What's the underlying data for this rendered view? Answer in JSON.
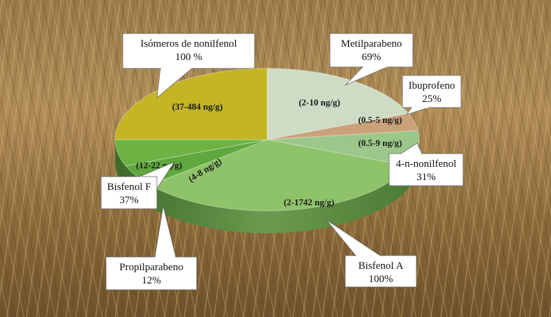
{
  "chart_data": {
    "type": "pie",
    "title": "",
    "slices": [
      {
        "name": "Metilparabeno",
        "percent": "69%",
        "range": "(2-10 ng/g)",
        "color": "#cfdcc5",
        "weight": 19
      },
      {
        "name": "Ibuprofeno",
        "percent": "25%",
        "range": "(0.5-5 ng/g)",
        "color": "#c9a27a",
        "weight": 4
      },
      {
        "name": "4-n-nonilfenol",
        "percent": "31%",
        "range": "(0.5-9 ng/g)",
        "color": "#9cc78a",
        "weight": 8
      },
      {
        "name": "Bisfenol A",
        "percent": "100%",
        "range": "(2-1742 ng/g)",
        "color": "#8fc36a",
        "weight": 33
      },
      {
        "name": "Propilparabeno",
        "percent": "12%",
        "range": "(4-8 ng/g)",
        "color": "#5fa83d",
        "weight": 5
      },
      {
        "name": "Bisfenol F",
        "percent": "37%",
        "range": "(12-22 ng/g)",
        "color": "#6cb344",
        "weight": 6
      },
      {
        "name": "Isómeros de nonilfenol",
        "percent": "100 %",
        "range": "(37-484 ng/g)",
        "color": "#c4b523",
        "weight": 25
      }
    ]
  }
}
